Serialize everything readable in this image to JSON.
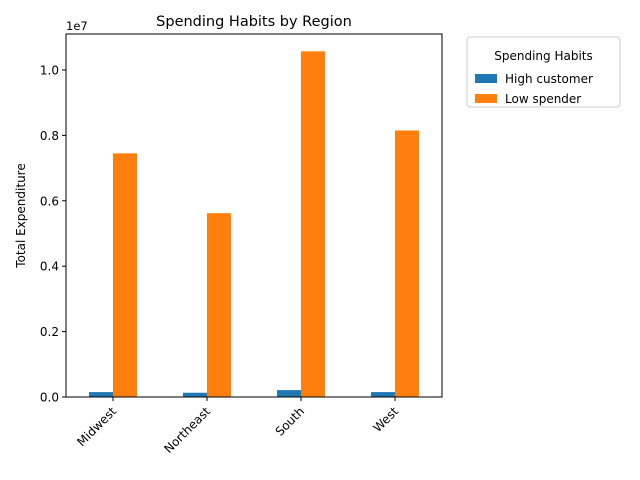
{
  "chart_data": {
    "type": "bar",
    "title": "Spending Habits by Region",
    "xlabel": "",
    "ylabel": "Total Expenditure",
    "offset_label": "1e7",
    "categories": [
      "Midwest",
      "Northeast",
      "South",
      "West"
    ],
    "series": [
      {
        "name": "High customer",
        "color": "#1f77b4",
        "values": [
          150000,
          130000,
          210000,
          150000
        ]
      },
      {
        "name": "Low spender",
        "color": "#ff7f0e",
        "values": [
          7450000,
          5620000,
          10570000,
          8150000
        ]
      }
    ],
    "ylim": [
      0,
      11100000
    ],
    "yticks": [
      0,
      2000000,
      4000000,
      6000000,
      8000000,
      10000000
    ],
    "ytick_labels": [
      "0.0",
      "0.2",
      "0.4",
      "0.6",
      "0.8",
      "1.0"
    ],
    "grid": false,
    "legend": {
      "title": "Spending Habits",
      "placement": "outside-top-right"
    }
  }
}
